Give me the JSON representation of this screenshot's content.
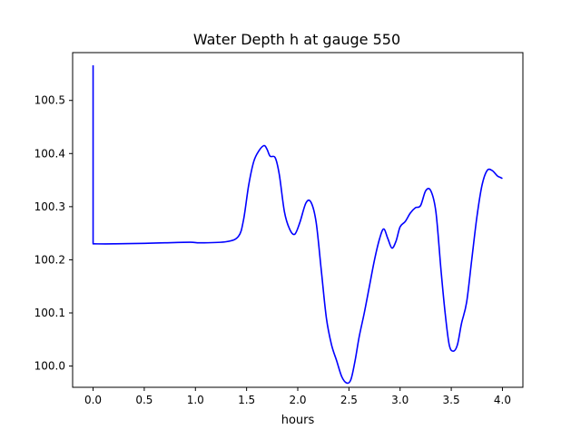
{
  "chart_data": {
    "type": "line",
    "title": "Water Depth h at gauge 550",
    "xlabel": "hours",
    "ylabel": "",
    "xlim": [
      -0.2,
      4.2
    ],
    "ylim": [
      99.96,
      100.59
    ],
    "xticks": [
      0.0,
      0.5,
      1.0,
      1.5,
      2.0,
      2.5,
      3.0,
      3.5,
      4.0
    ],
    "xtick_labels": [
      "0.0",
      "0.5",
      "1.0",
      "1.5",
      "2.0",
      "2.5",
      "3.0",
      "3.5",
      "4.0"
    ],
    "yticks": [
      100.0,
      100.1,
      100.2,
      100.3,
      100.4,
      100.5
    ],
    "ytick_labels": [
      "100.0",
      "100.1",
      "100.2",
      "100.3",
      "100.4",
      "100.5"
    ],
    "grid": false,
    "series": [
      {
        "color": "#0000ff",
        "x": [
          0.0,
          0.0,
          0.01,
          0.2,
          0.5,
          0.7,
          0.95,
          1.05,
          1.3,
          1.42,
          1.47,
          1.52,
          1.57,
          1.62,
          1.67,
          1.7,
          1.73,
          1.78,
          1.82,
          1.87,
          1.92,
          1.97,
          2.02,
          2.08,
          2.13,
          2.18,
          2.23,
          2.28,
          2.33,
          2.38,
          2.43,
          2.48,
          2.52,
          2.56,
          2.6,
          2.65,
          2.7,
          2.75,
          2.8,
          2.84,
          2.88,
          2.92,
          2.96,
          3.0,
          3.05,
          3.1,
          3.15,
          3.2,
          3.25,
          3.3,
          3.35,
          3.4,
          3.44,
          3.48,
          3.52,
          3.56,
          3.6,
          3.65,
          3.7,
          3.75,
          3.8,
          3.85,
          3.9,
          3.95,
          3.98,
          4.0
        ],
        "y": [
          100.566,
          100.23,
          100.23,
          100.23,
          100.231,
          100.232,
          100.233,
          100.232,
          100.234,
          100.244,
          100.275,
          100.34,
          100.385,
          100.405,
          100.415,
          100.408,
          100.395,
          100.392,
          100.36,
          100.29,
          100.258,
          100.248,
          100.27,
          100.307,
          100.308,
          100.27,
          100.18,
          100.09,
          100.04,
          100.01,
          99.98,
          99.968,
          99.975,
          100.01,
          100.055,
          100.1,
          100.15,
          100.2,
          100.24,
          100.258,
          100.24,
          100.222,
          100.235,
          100.262,
          100.272,
          100.288,
          100.298,
          100.302,
          100.33,
          100.33,
          100.29,
          100.18,
          100.1,
          100.04,
          100.028,
          100.04,
          100.08,
          100.12,
          100.2,
          100.28,
          100.34,
          100.368,
          100.368,
          100.358,
          100.355,
          100.353
        ]
      }
    ]
  }
}
